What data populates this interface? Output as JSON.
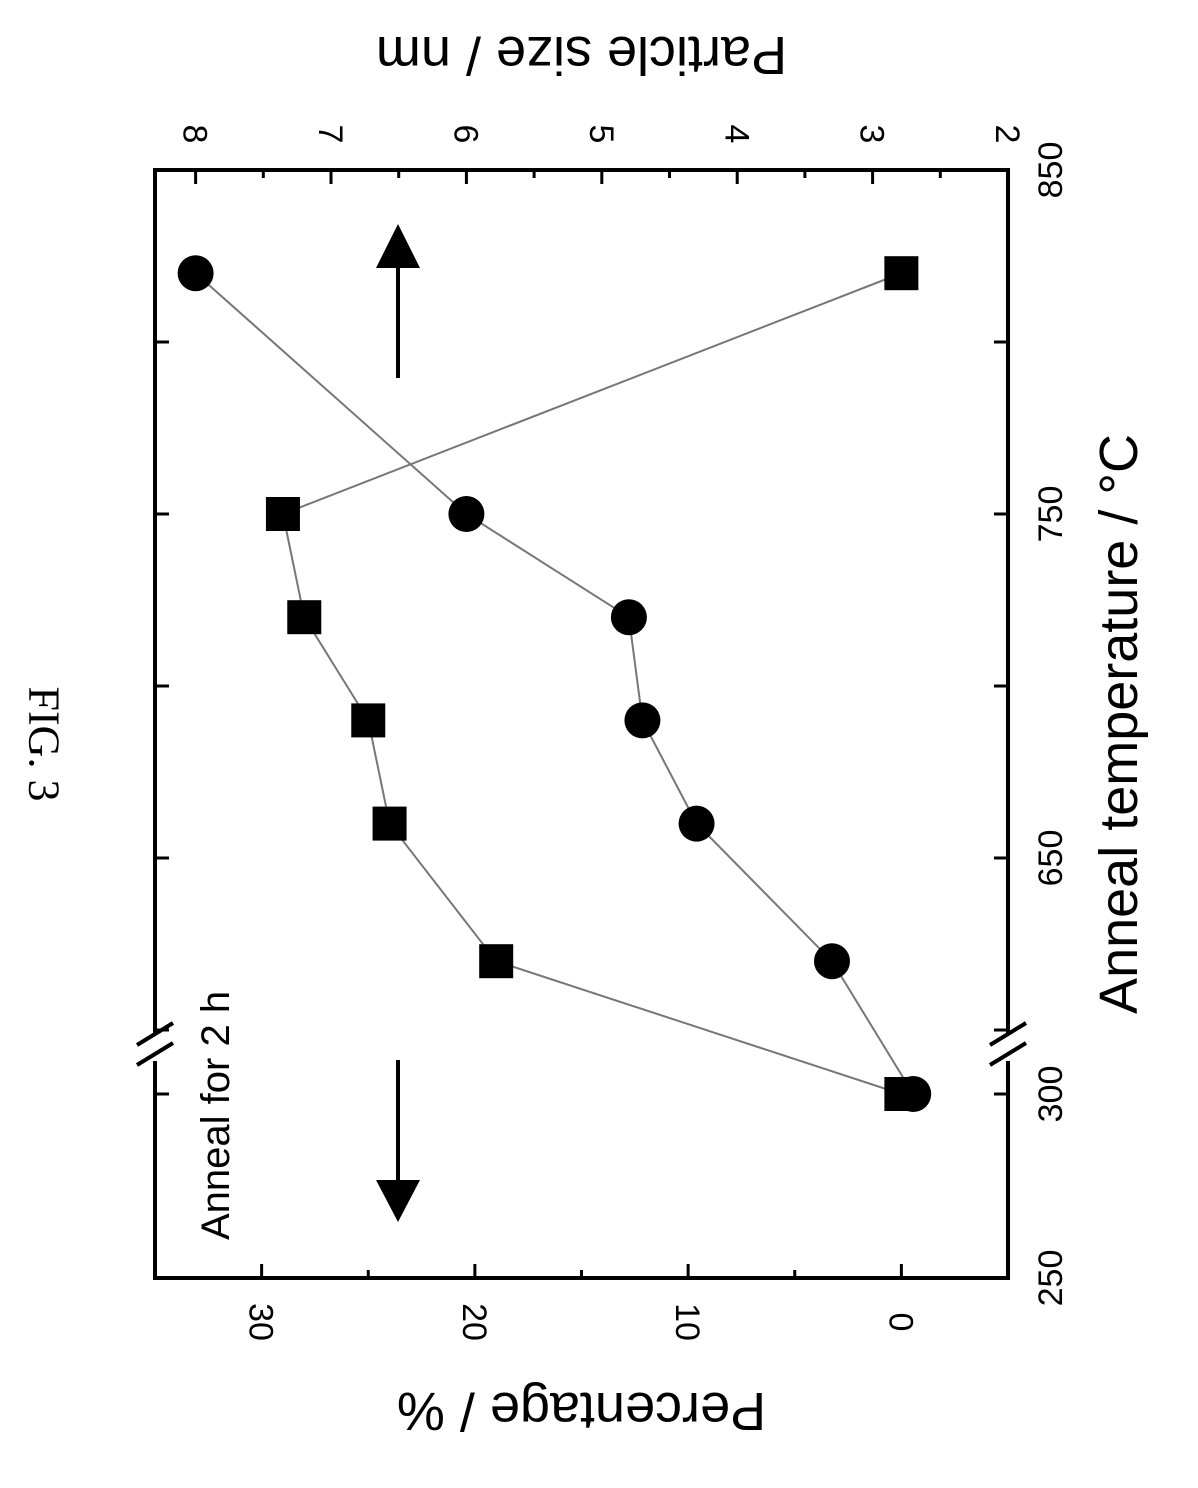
{
  "figure_label": "FIG. 3",
  "chart_data": {
    "type": "scatter",
    "orientation": "rotated 90 degrees clockwise",
    "annotation": "Anneal for 2 h",
    "x_axis": {
      "label": "Anneal temperature / °C",
      "range": [
        250,
        850
      ],
      "ticks": [
        250,
        300,
        650,
        750,
        850
      ],
      "tick_labels": [
        "250",
        "300",
        "650",
        "750",
        "850"
      ],
      "axis_break_between": [
        300,
        600
      ]
    },
    "y_axis_left": {
      "label": "Percentage / %",
      "range": [
        -5,
        35
      ],
      "ticks": [
        0,
        10,
        20,
        30
      ],
      "tick_labels": [
        "0",
        "10",
        "20",
        "30"
      ]
    },
    "y_axis_right": {
      "label": "Particle size / nm",
      "range": [
        2,
        8.3
      ],
      "ticks": [
        2,
        3,
        4,
        5,
        6,
        7,
        8
      ],
      "tick_labels": [
        "2",
        "3",
        "4",
        "5",
        "6",
        "7",
        "8"
      ]
    },
    "series": [
      {
        "marker": "square",
        "axis": "left",
        "x": [
          300,
          620,
          660,
          690,
          720,
          750,
          820
        ],
        "y": [
          0,
          19,
          24,
          25,
          28,
          29,
          0
        ]
      },
      {
        "marker": "circle",
        "axis": "right",
        "x": [
          300,
          620,
          660,
          690,
          720,
          750,
          820
        ],
        "y": [
          2.7,
          3.3,
          4.3,
          4.7,
          4.8,
          6.0,
          8.0
        ]
      }
    ],
    "arrows": [
      {
        "points_to": "left axis",
        "direction": "down",
        "near_x": 280
      },
      {
        "points_to": "right axis",
        "direction": "up",
        "near_x": 800
      }
    ],
    "grid": false,
    "legend": "none"
  }
}
